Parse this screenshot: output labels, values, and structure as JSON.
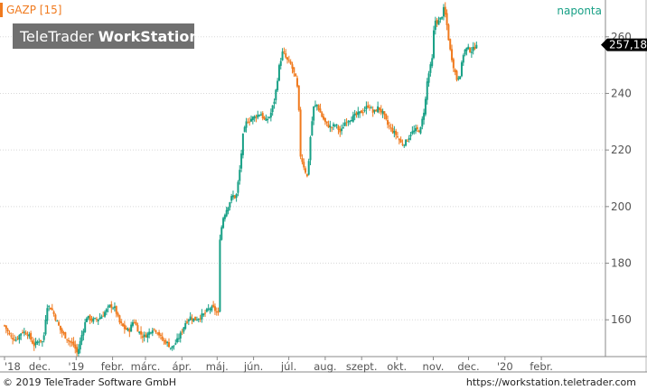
{
  "header": {
    "symbol": "GAZP [15]",
    "interval": "naponta"
  },
  "brand": {
    "light": "TeleTrader",
    "bold": "WorkStation"
  },
  "footer": {
    "copyright": "© 2019 TeleTrader Software GmbH",
    "url": "https://workstation.teletrader.com"
  },
  "colors": {
    "up": "#18a086",
    "down": "#f07a1e",
    "symbol_text": "#f07a1e",
    "interval_text": "#18a086",
    "brand_bg": "#707070",
    "grid": "#d8d8d8",
    "axis": "#888888",
    "last_price_bg": "#000000"
  },
  "chart_data": {
    "type": "candlestick",
    "y_axis": {
      "ticks": [
        160,
        180,
        200,
        220,
        240,
        260
      ],
      "range": [
        147,
        273
      ],
      "side": "right",
      "grid": true
    },
    "x_axis": {
      "ticks": [
        {
          "label": "'18",
          "day": 0
        },
        {
          "label": "dec.",
          "day": 30
        },
        {
          "label": "'19",
          "day": 61
        },
        {
          "label": "febr.",
          "day": 92
        },
        {
          "label": "márc.",
          "day": 120
        },
        {
          "label": "ápr.",
          "day": 151
        },
        {
          "label": "máj.",
          "day": 181
        },
        {
          "label": "jún.",
          "day": 212
        },
        {
          "label": "júl.",
          "day": 242
        },
        {
          "label": "aug.",
          "day": 273
        },
        {
          "label": "szept.",
          "day": 304
        },
        {
          "label": "okt.",
          "day": 334
        },
        {
          "label": "nov.",
          "day": 365
        },
        {
          "label": "dec.",
          "day": 395
        },
        {
          "label": "'20",
          "day": 426
        },
        {
          "label": "febr.",
          "day": 457
        }
      ]
    },
    "last_price": 257.18,
    "last_price_label": "257,18",
    "series_path": [
      [
        0,
        158
      ],
      [
        5,
        154
      ],
      [
        10,
        153
      ],
      [
        15,
        156
      ],
      [
        20,
        155
      ],
      [
        25,
        151
      ],
      [
        30,
        153
      ],
      [
        33,
        152
      ],
      [
        36,
        165
      ],
      [
        40,
        164
      ],
      [
        44,
        160
      ],
      [
        48,
        156
      ],
      [
        52,
        154
      ],
      [
        56,
        152
      ],
      [
        59,
        151
      ],
      [
        62,
        148
      ],
      [
        66,
        155
      ],
      [
        70,
        161
      ],
      [
        74,
        160
      ],
      [
        78,
        160
      ],
      [
        82,
        161
      ],
      [
        86,
        163
      ],
      [
        90,
        165
      ],
      [
        94,
        164
      ],
      [
        98,
        159
      ],
      [
        102,
        157
      ],
      [
        106,
        156
      ],
      [
        110,
        160
      ],
      [
        114,
        156
      ],
      [
        118,
        154
      ],
      [
        122,
        155
      ],
      [
        126,
        157
      ],
      [
        130,
        156
      ],
      [
        134,
        153
      ],
      [
        138,
        152
      ],
      [
        142,
        150
      ],
      [
        146,
        152
      ],
      [
        150,
        155
      ],
      [
        154,
        159
      ],
      [
        158,
        161
      ],
      [
        162,
        160
      ],
      [
        166,
        161
      ],
      [
        170,
        162
      ],
      [
        174,
        164
      ],
      [
        178,
        164
      ],
      [
        182,
        162
      ],
      [
        183,
        188
      ],
      [
        186,
        196
      ],
      [
        190,
        200
      ],
      [
        194,
        204
      ],
      [
        197,
        203
      ],
      [
        200,
        212
      ],
      [
        203,
        225
      ],
      [
        206,
        230
      ],
      [
        210,
        231
      ],
      [
        214,
        232
      ],
      [
        218,
        233
      ],
      [
        222,
        230
      ],
      [
        226,
        232
      ],
      [
        230,
        238
      ],
      [
        234,
        250
      ],
      [
        237,
        255
      ],
      [
        240,
        252
      ],
      [
        244,
        250
      ],
      [
        248,
        245
      ],
      [
        250,
        240
      ],
      [
        252,
        218
      ],
      [
        255,
        214
      ],
      [
        258,
        210
      ],
      [
        260,
        223
      ],
      [
        263,
        235
      ],
      [
        266,
        236
      ],
      [
        270,
        232
      ],
      [
        274,
        229
      ],
      [
        278,
        228
      ],
      [
        282,
        229
      ],
      [
        286,
        226
      ],
      [
        290,
        230
      ],
      [
        294,
        231
      ],
      [
        298,
        232
      ],
      [
        302,
        233
      ],
      [
        306,
        234
      ],
      [
        310,
        236
      ],
      [
        314,
        233
      ],
      [
        318,
        235
      ],
      [
        322,
        233
      ],
      [
        326,
        229
      ],
      [
        330,
        227
      ],
      [
        334,
        225
      ],
      [
        338,
        222
      ],
      [
        342,
        223
      ],
      [
        346,
        226
      ],
      [
        350,
        227
      ],
      [
        354,
        227
      ],
      [
        358,
        236
      ],
      [
        360,
        245
      ],
      [
        364,
        252
      ],
      [
        366,
        266
      ],
      [
        369,
        265
      ],
      [
        372,
        267
      ],
      [
        374,
        270
      ],
      [
        376,
        266
      ],
      [
        379,
        256
      ],
      [
        382,
        250
      ],
      [
        385,
        245
      ],
      [
        388,
        247
      ],
      [
        391,
        255
      ],
      [
        394,
        256
      ],
      [
        397,
        255
      ],
      [
        400,
        256
      ],
      [
        402,
        258
      ]
    ]
  }
}
